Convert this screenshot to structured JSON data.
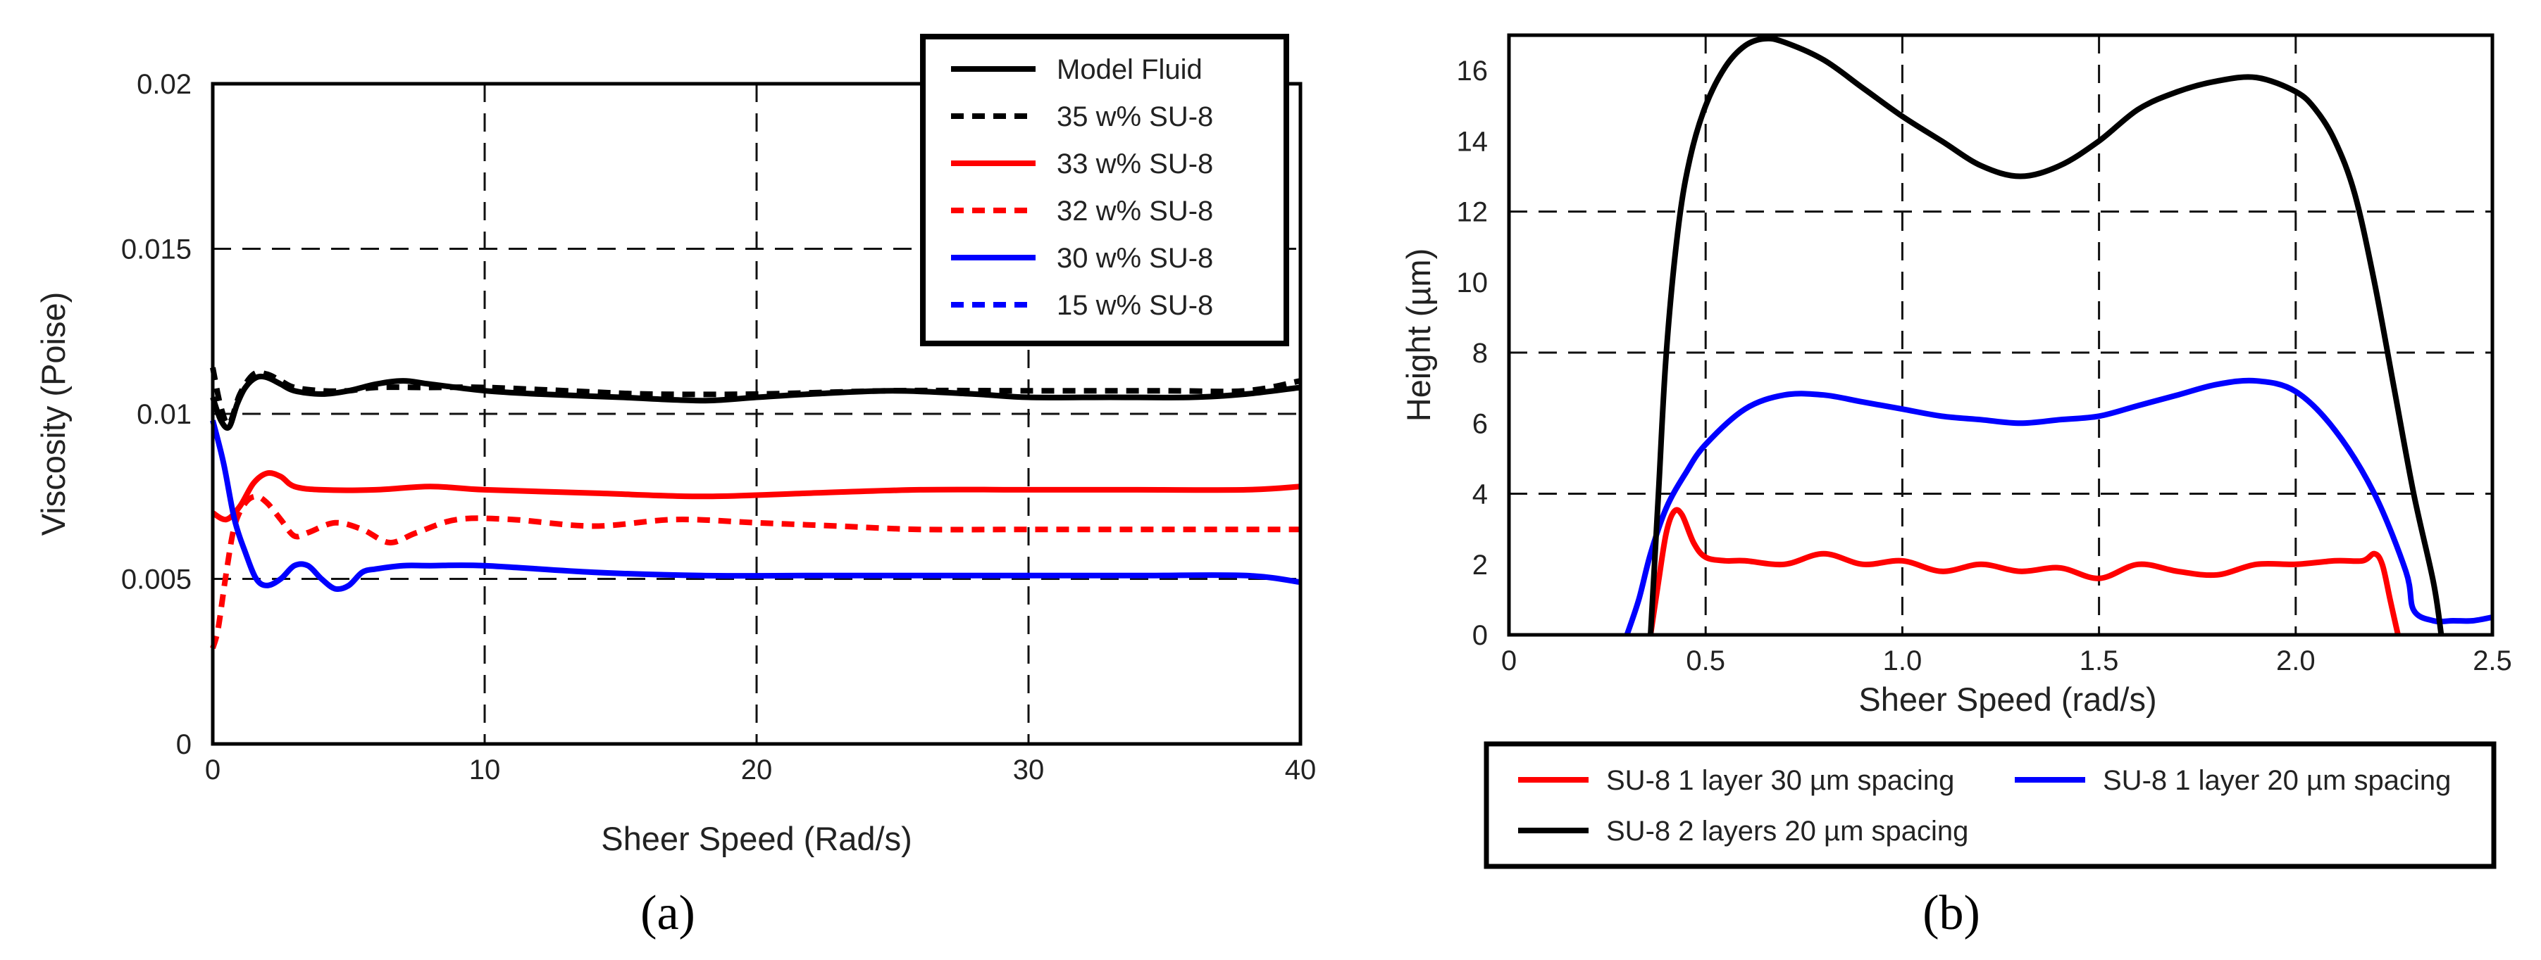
{
  "colors": {
    "black": "#000000",
    "red": "#ff0000",
    "blue": "#0000ff"
  },
  "chart_data": [
    {
      "type": "line",
      "panel_label": "(a)",
      "xlabel": "Sheer Speed (Rad/s)",
      "ylabel": "Viscosity (Poise)",
      "xlim": [
        0,
        40
      ],
      "ylim": [
        0,
        0.02
      ],
      "xticks": [
        0,
        10,
        20,
        30,
        40
      ],
      "xtick_labels": [
        "0",
        "10",
        "20",
        "30",
        "40"
      ],
      "yticks": [
        0,
        0.005,
        0.01,
        0.015,
        0.02
      ],
      "ytick_labels": [
        "0",
        "0.005",
        "0.01",
        "0.015",
        "0.02"
      ],
      "grid": true,
      "legend_position": "top-right",
      "series": [
        {
          "name": "Model Fluid",
          "color": "#000000",
          "style": "solid",
          "x": [
            0,
            0.3,
            0.6,
            0.9,
            1.2,
            1.6,
            2,
            2.5,
            3,
            4,
            5,
            6,
            7,
            8,
            10,
            12,
            15,
            18,
            20,
            22,
            25,
            28,
            30,
            33,
            36,
            38,
            40
          ],
          "y": [
            0.0105,
            0.0098,
            0.0096,
            0.0103,
            0.0108,
            0.0111,
            0.0111,
            0.0109,
            0.0107,
            0.0106,
            0.0107,
            0.0109,
            0.011,
            0.0109,
            0.0107,
            0.0106,
            0.0105,
            0.0104,
            0.0105,
            0.0106,
            0.0107,
            0.0106,
            0.0105,
            0.0105,
            0.0105,
            0.0106,
            0.0108
          ]
        },
        {
          "name": "35 w% SU-8",
          "color": "#000000",
          "style": "dashed",
          "x": [
            0,
            0.3,
            0.6,
            1,
            1.5,
            2,
            2.5,
            3,
            4,
            5,
            6,
            8,
            10,
            13,
            16,
            20,
            25,
            30,
            35,
            38,
            40
          ],
          "y": [
            0.0114,
            0.0102,
            0.0097,
            0.0106,
            0.0112,
            0.0112,
            0.011,
            0.0108,
            0.0107,
            0.0107,
            0.0108,
            0.0108,
            0.0108,
            0.0107,
            0.0106,
            0.0106,
            0.0107,
            0.0107,
            0.0107,
            0.0107,
            0.011
          ]
        },
        {
          "name": "33 w% SU-8",
          "color": "#ff0000",
          "style": "solid",
          "x": [
            0,
            0.5,
            1,
            1.5,
            2,
            2.5,
            3,
            4,
            6,
            8,
            10,
            14,
            18,
            22,
            26,
            30,
            34,
            38,
            40
          ],
          "y": [
            0.007,
            0.0068,
            0.0072,
            0.0079,
            0.0082,
            0.0081,
            0.0078,
            0.0077,
            0.0077,
            0.0078,
            0.0077,
            0.0076,
            0.0075,
            0.0076,
            0.0077,
            0.0077,
            0.0077,
            0.0077,
            0.0078
          ]
        },
        {
          "name": "32 w% SU-8",
          "color": "#ff0000",
          "style": "dashed",
          "x": [
            0,
            0.2,
            0.5,
            0.8,
            1.2,
            1.6,
            2,
            2.5,
            3,
            3.5,
            4.5,
            5.5,
            6.5,
            7.5,
            9,
            11,
            14,
            17,
            20,
            23,
            26,
            30,
            34,
            38,
            40
          ],
          "y": [
            0.0029,
            0.0035,
            0.0052,
            0.0066,
            0.0073,
            0.0075,
            0.0073,
            0.0068,
            0.0063,
            0.0064,
            0.0067,
            0.0065,
            0.0061,
            0.0064,
            0.0068,
            0.0068,
            0.0066,
            0.0068,
            0.0067,
            0.0066,
            0.0065,
            0.0065,
            0.0065,
            0.0065,
            0.0065
          ]
        },
        {
          "name": "30 w% SU-8",
          "color": "#0000ff",
          "style": "solid",
          "x": [
            0,
            0.4,
            0.8,
            1.2,
            1.6,
            2,
            2.5,
            3,
            3.5,
            4,
            4.5,
            5,
            5.5,
            6,
            7,
            8,
            10,
            14,
            18,
            22,
            26,
            30,
            34,
            38,
            40
          ],
          "y": [
            0.0098,
            0.0085,
            0.0068,
            0.0058,
            0.005,
            0.0048,
            0.005,
            0.0054,
            0.0054,
            0.005,
            0.0047,
            0.0048,
            0.0052,
            0.0053,
            0.0054,
            0.0054,
            0.0054,
            0.0052,
            0.0051,
            0.0051,
            0.0051,
            0.0051,
            0.0051,
            0.0051,
            0.0049
          ]
        },
        {
          "name": "15 w% SU-8",
          "color": "#0000ff",
          "style": "dashed",
          "x": [],
          "y": []
        }
      ]
    },
    {
      "type": "line",
      "panel_label": "(b)",
      "xlabel": "Sheer Speed (rad/s)",
      "ylabel": "Height (µm)",
      "xlim": [
        0,
        2.5
      ],
      "ylim": [
        0,
        17
      ],
      "xticks": [
        0,
        0.5,
        1,
        1.5,
        2,
        2.5
      ],
      "xtick_labels": [
        "0",
        "0.5",
        "1.0",
        "1.5",
        "2.0",
        "2.5"
      ],
      "yticks": [
        0,
        2,
        4,
        6,
        8,
        10,
        12,
        14,
        16
      ],
      "ytick_labels": [
        "0",
        "2",
        "4",
        "6",
        "8",
        "10",
        "12",
        "14",
        "16"
      ],
      "vgrid": [
        0.5,
        1,
        1.5,
        2
      ],
      "hgrid": [
        4,
        8,
        12
      ],
      "grid": true,
      "legend_position": "bottom (below axes)",
      "series": [
        {
          "name": "SU-8 1 layer 30 µm spacing",
          "color": "#ff0000",
          "style": "solid",
          "x": [
            0.36,
            0.38,
            0.4,
            0.42,
            0.44,
            0.47,
            0.5,
            0.55,
            0.6,
            0.7,
            0.8,
            0.9,
            1,
            1.1,
            1.2,
            1.3,
            1.4,
            1.5,
            1.6,
            1.7,
            1.8,
            1.9,
            2,
            2.1,
            2.17,
            2.2,
            2.22,
            2.24,
            2.26
          ],
          "y": [
            0,
            1.5,
            2.9,
            3.5,
            3.4,
            2.6,
            2.2,
            2.1,
            2.1,
            2,
            2.3,
            2,
            2.1,
            1.8,
            2,
            1.8,
            1.9,
            1.6,
            2,
            1.8,
            1.7,
            2,
            2,
            2.1,
            2.1,
            2.3,
            2,
            1,
            0
          ]
        },
        {
          "name": "SU-8 1 layer 20 µm spacing",
          "color": "#0000ff",
          "style": "solid",
          "x": [
            0.3,
            0.33,
            0.36,
            0.4,
            0.45,
            0.5,
            0.6,
            0.7,
            0.8,
            0.9,
            1,
            1.1,
            1.2,
            1.3,
            1.4,
            1.5,
            1.6,
            1.7,
            1.8,
            1.9,
            2,
            2.1,
            2.2,
            2.28,
            2.3,
            2.35,
            2.4,
            2.45,
            2.5
          ],
          "y": [
            0,
            1,
            2.3,
            3.6,
            4.6,
            5.4,
            6.4,
            6.8,
            6.8,
            6.6,
            6.4,
            6.2,
            6.1,
            6,
            6.1,
            6.2,
            6.5,
            6.8,
            7.1,
            7.2,
            6.9,
            5.8,
            4,
            1.8,
            0.7,
            0.4,
            0.4,
            0.4,
            0.5
          ]
        },
        {
          "name": "SU-8 2 layers 20 µm spacing",
          "color": "#000000",
          "style": "solid",
          "x": [
            0.36,
            0.38,
            0.4,
            0.43,
            0.46,
            0.5,
            0.55,
            0.6,
            0.65,
            0.7,
            0.8,
            0.9,
            1,
            1.1,
            1.2,
            1.3,
            1.4,
            1.5,
            1.6,
            1.7,
            1.8,
            1.9,
            2,
            2.05,
            2.1,
            2.15,
            2.2,
            2.25,
            2.3,
            2.35,
            2.37
          ],
          "y": [
            0,
            4,
            8,
            11.5,
            13.5,
            15,
            16.1,
            16.7,
            16.9,
            16.8,
            16.3,
            15.5,
            14.7,
            14,
            13.3,
            13,
            13.3,
            14,
            14.9,
            15.4,
            15.7,
            15.8,
            15.4,
            14.9,
            14,
            12.5,
            10,
            7,
            4,
            1.5,
            0
          ]
        }
      ]
    }
  ]
}
